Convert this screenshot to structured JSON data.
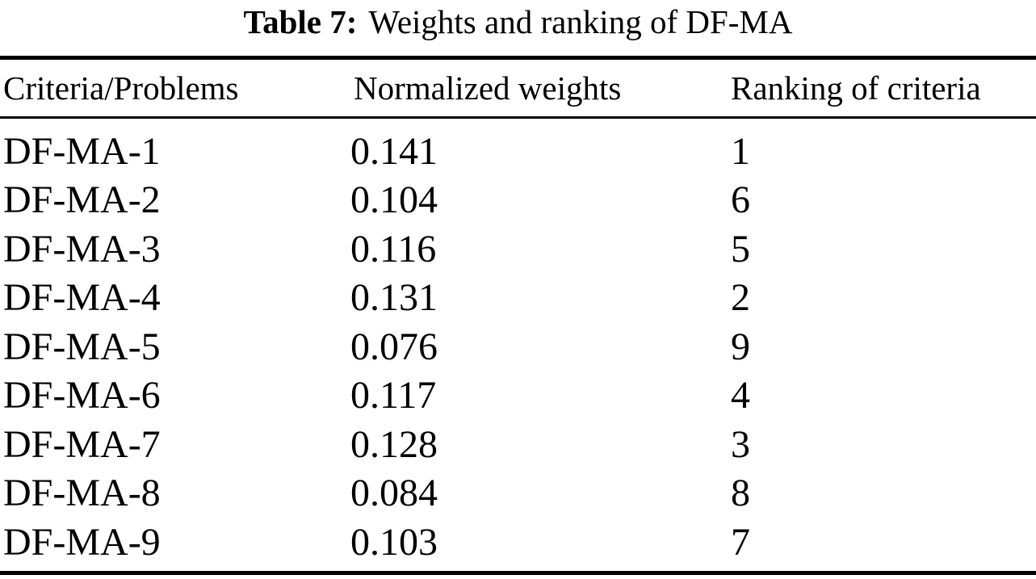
{
  "title": {
    "label": "Table 7:",
    "text": "Weights and ranking of DF-MA"
  },
  "table": {
    "headers": {
      "criteria": "Criteria/Problems",
      "weights": "Normalized weights",
      "ranking": "Ranking of criteria"
    },
    "rows": [
      {
        "criteria": "DF-MA-1",
        "weight": "0.141",
        "rank": "1"
      },
      {
        "criteria": "DF-MA-2",
        "weight": "0.104",
        "rank": "6"
      },
      {
        "criteria": "DF-MA-3",
        "weight": "0.116",
        "rank": "5"
      },
      {
        "criteria": "DF-MA-4",
        "weight": "0.131",
        "rank": "2"
      },
      {
        "criteria": "DF-MA-5",
        "weight": "0.076",
        "rank": "9"
      },
      {
        "criteria": "DF-MA-6",
        "weight": "0.117",
        "rank": "4"
      },
      {
        "criteria": "DF-MA-7",
        "weight": "0.128",
        "rank": "3"
      },
      {
        "criteria": "DF-MA-8",
        "weight": "0.084",
        "rank": "8"
      },
      {
        "criteria": "DF-MA-9",
        "weight": "0.103",
        "rank": "7"
      }
    ]
  },
  "chart_data": {
    "type": "table",
    "title": "Table 7: Weights and ranking of DF-MA",
    "columns": [
      "Criteria/Problems",
      "Normalized weights",
      "Ranking of criteria"
    ],
    "categories": [
      "DF-MA-1",
      "DF-MA-2",
      "DF-MA-3",
      "DF-MA-4",
      "DF-MA-5",
      "DF-MA-6",
      "DF-MA-7",
      "DF-MA-8",
      "DF-MA-9"
    ],
    "series": [
      {
        "name": "Normalized weights",
        "values": [
          0.141,
          0.104,
          0.116,
          0.131,
          0.076,
          0.117,
          0.128,
          0.084,
          0.103
        ]
      },
      {
        "name": "Ranking of criteria",
        "values": [
          1,
          6,
          5,
          2,
          9,
          4,
          3,
          8,
          7
        ]
      }
    ]
  }
}
